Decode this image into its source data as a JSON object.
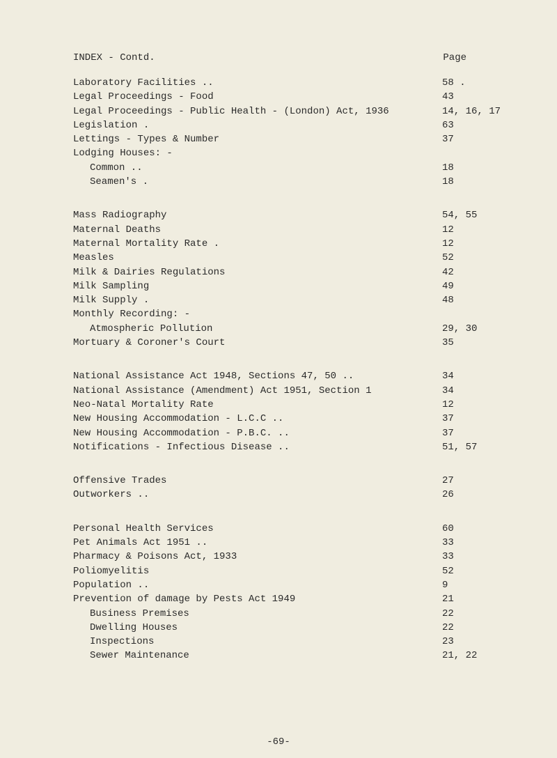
{
  "title": "INDEX - Contd.",
  "page_header": "Page",
  "footer": "-69-",
  "entries": [
    {
      "label": "Laboratory Facilities ..",
      "page": "58 .",
      "indent": false
    },
    {
      "label": "Legal Proceedings - Food",
      "page": "43",
      "indent": false
    },
    {
      "label": "Legal Proceedings - Public Health - (London) Act, 1936",
      "page": "14, 16, 17",
      "indent": false
    },
    {
      "label": "Legislation .",
      "page": "63",
      "indent": false
    },
    {
      "label": "Lettings - Types & Number",
      "page": "37",
      "indent": false
    },
    {
      "label": "Lodging Houses: -",
      "page": "",
      "indent": false
    },
    {
      "label": "Common ..",
      "page": "18",
      "indent": true
    },
    {
      "label": "Seamen's .",
      "page": "18",
      "indent": true
    },
    {
      "gap": true
    },
    {
      "label": "Mass Radiography",
      "page": "54, 55",
      "indent": false
    },
    {
      "label": "Maternal Deaths",
      "page": "12",
      "indent": false
    },
    {
      "label": "Maternal Mortality Rate .",
      "page": "12",
      "indent": false
    },
    {
      "label": "Measles",
      "page": "52",
      "indent": false
    },
    {
      "label": "Milk & Dairies Regulations",
      "page": "42",
      "indent": false
    },
    {
      "label": "Milk Sampling",
      "page": "49",
      "indent": false
    },
    {
      "label": "Milk Supply .",
      "page": "48",
      "indent": false
    },
    {
      "label": "Monthly Recording: -",
      "page": "",
      "indent": false
    },
    {
      "label": "Atmospheric Pollution",
      "page": "29, 30",
      "indent": true
    },
    {
      "label": "Mortuary & Coroner's Court",
      "page": "35",
      "indent": false
    },
    {
      "gap": true
    },
    {
      "label": "National Assistance Act 1948, Sections 47, 50 ..",
      "page": "34",
      "indent": false
    },
    {
      "label": "National Assistance (Amendment) Act 1951, Section 1",
      "page": "34",
      "indent": false
    },
    {
      "label": "Neo-Natal Mortality Rate",
      "page": "12",
      "indent": false
    },
    {
      "label": "New Housing Accommodation - L.C.C ..",
      "page": "37",
      "indent": false
    },
    {
      "label": "New Housing Accommodation - P.B.C. ..",
      "page": "37",
      "indent": false
    },
    {
      "label": "Notifications - Infectious Disease ..",
      "page": "51, 57",
      "indent": false
    },
    {
      "gap": true
    },
    {
      "label": "Offensive Trades",
      "page": "27",
      "indent": false
    },
    {
      "label": "Outworkers ..",
      "page": "26",
      "indent": false
    },
    {
      "gap": true
    },
    {
      "label": "Personal Health Services",
      "page": "60",
      "indent": false
    },
    {
      "label": "Pet Animals Act 1951  ..",
      "page": "33",
      "indent": false
    },
    {
      "label": "Pharmacy & Poisons Act, 1933",
      "page": "33",
      "indent": false
    },
    {
      "label": "Poliomyelitis",
      "page": "52",
      "indent": false
    },
    {
      "label": "Population ..",
      "page": "9",
      "indent": false
    },
    {
      "label": "Prevention of damage by Pests Act 1949",
      "page": "21",
      "indent": false
    },
    {
      "label": "Business Premises",
      "page": "22",
      "indent": true
    },
    {
      "label": "Dwelling Houses",
      "page": "22",
      "indent": true
    },
    {
      "label": "Inspections",
      "page": "23",
      "indent": true
    },
    {
      "label": "Sewer Maintenance",
      "page": "21, 22",
      "indent": true
    }
  ]
}
